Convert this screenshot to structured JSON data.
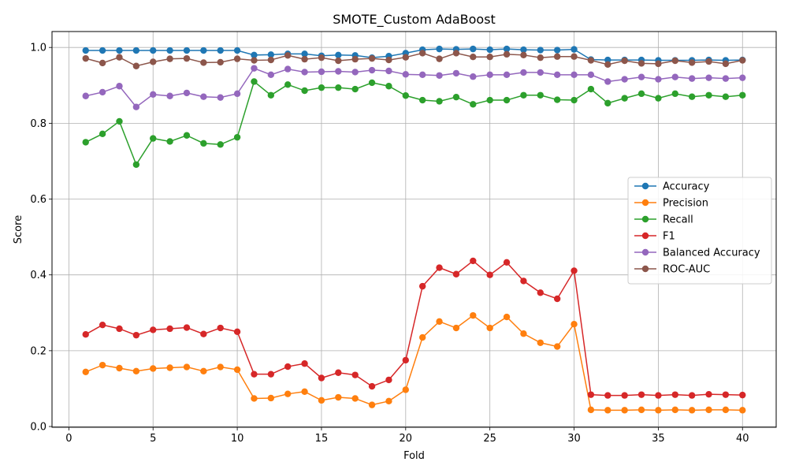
{
  "chart_data": {
    "type": "line",
    "title": "SMOTE_Custom AdaBoost",
    "xlabel": "Fold",
    "ylabel": "Score",
    "xlim": [
      -1,
      42
    ],
    "ylim": [
      -0.002,
      1.042
    ],
    "xticks": [
      0,
      5,
      10,
      15,
      20,
      25,
      30,
      35,
      40
    ],
    "yticks": [
      0.0,
      0.2,
      0.4,
      0.6,
      0.8,
      1.0
    ],
    "ytick_labels": [
      "0.0",
      "0.2",
      "0.4",
      "0.6",
      "0.8",
      "1.0"
    ],
    "grid": true,
    "legend_position": "center-right",
    "x": [
      1,
      2,
      3,
      4,
      5,
      6,
      7,
      8,
      9,
      10,
      11,
      12,
      13,
      14,
      15,
      16,
      17,
      18,
      19,
      20,
      21,
      22,
      23,
      24,
      25,
      26,
      27,
      28,
      29,
      30,
      31,
      32,
      33,
      34,
      35,
      36,
      37,
      38,
      39,
      40
    ],
    "series": [
      {
        "name": "Accuracy",
        "color": "#1f77b4",
        "values": [
          0.992,
          0.992,
          0.992,
          0.992,
          0.992,
          0.992,
          0.992,
          0.992,
          0.992,
          0.992,
          0.98,
          0.981,
          0.983,
          0.983,
          0.978,
          0.98,
          0.979,
          0.973,
          0.977,
          0.985,
          0.994,
          0.996,
          0.995,
          0.996,
          0.994,
          0.996,
          0.994,
          0.993,
          0.993,
          0.995,
          0.968,
          0.967,
          0.967,
          0.967,
          0.966,
          0.966,
          0.966,
          0.967,
          0.966,
          0.967
        ]
      },
      {
        "name": "Precision",
        "color": "#ff7f0e",
        "values": [
          0.144,
          0.162,
          0.154,
          0.146,
          0.153,
          0.155,
          0.157,
          0.146,
          0.157,
          0.15,
          0.074,
          0.075,
          0.086,
          0.092,
          0.069,
          0.077,
          0.074,
          0.057,
          0.067,
          0.097,
          0.235,
          0.277,
          0.26,
          0.293,
          0.26,
          0.289,
          0.245,
          0.221,
          0.211,
          0.27,
          0.044,
          0.043,
          0.043,
          0.044,
          0.043,
          0.044,
          0.043,
          0.044,
          0.044,
          0.043
        ]
      },
      {
        "name": "Recall",
        "color": "#2ca02c",
        "values": [
          0.75,
          0.772,
          0.805,
          0.691,
          0.76,
          0.752,
          0.768,
          0.747,
          0.744,
          0.763,
          0.91,
          0.874,
          0.902,
          0.886,
          0.894,
          0.894,
          0.89,
          0.907,
          0.898,
          0.873,
          0.861,
          0.858,
          0.869,
          0.85,
          0.861,
          0.861,
          0.874,
          0.874,
          0.862,
          0.861,
          0.89,
          0.853,
          0.866,
          0.878,
          0.866,
          0.878,
          0.87,
          0.874,
          0.87,
          0.874
        ]
      },
      {
        "name": "F1",
        "color": "#d62728",
        "values": [
          0.243,
          0.268,
          0.258,
          0.241,
          0.255,
          0.258,
          0.261,
          0.244,
          0.26,
          0.25,
          0.138,
          0.138,
          0.158,
          0.166,
          0.128,
          0.142,
          0.136,
          0.106,
          0.123,
          0.175,
          0.37,
          0.419,
          0.402,
          0.437,
          0.4,
          0.433,
          0.384,
          0.353,
          0.337,
          0.411,
          0.084,
          0.082,
          0.082,
          0.084,
          0.082,
          0.084,
          0.082,
          0.085,
          0.084,
          0.083
        ]
      },
      {
        "name": "Balanced Accuracy",
        "color": "#9467bd",
        "values": [
          0.872,
          0.882,
          0.898,
          0.843,
          0.876,
          0.872,
          0.88,
          0.87,
          0.868,
          0.878,
          0.945,
          0.928,
          0.943,
          0.935,
          0.936,
          0.937,
          0.935,
          0.94,
          0.938,
          0.929,
          0.928,
          0.926,
          0.932,
          0.923,
          0.928,
          0.928,
          0.934,
          0.934,
          0.928,
          0.928,
          0.928,
          0.91,
          0.916,
          0.922,
          0.916,
          0.922,
          0.918,
          0.92,
          0.918,
          0.92
        ]
      },
      {
        "name": "ROC-AUC",
        "color": "#8c564b",
        "values": [
          0.971,
          0.959,
          0.974,
          0.951,
          0.962,
          0.97,
          0.971,
          0.96,
          0.961,
          0.97,
          0.966,
          0.967,
          0.979,
          0.969,
          0.973,
          0.965,
          0.969,
          0.971,
          0.967,
          0.974,
          0.985,
          0.97,
          0.985,
          0.975,
          0.975,
          0.982,
          0.98,
          0.973,
          0.976,
          0.976,
          0.966,
          0.955,
          0.965,
          0.958,
          0.957,
          0.965,
          0.96,
          0.963,
          0.957,
          0.966
        ]
      }
    ]
  }
}
